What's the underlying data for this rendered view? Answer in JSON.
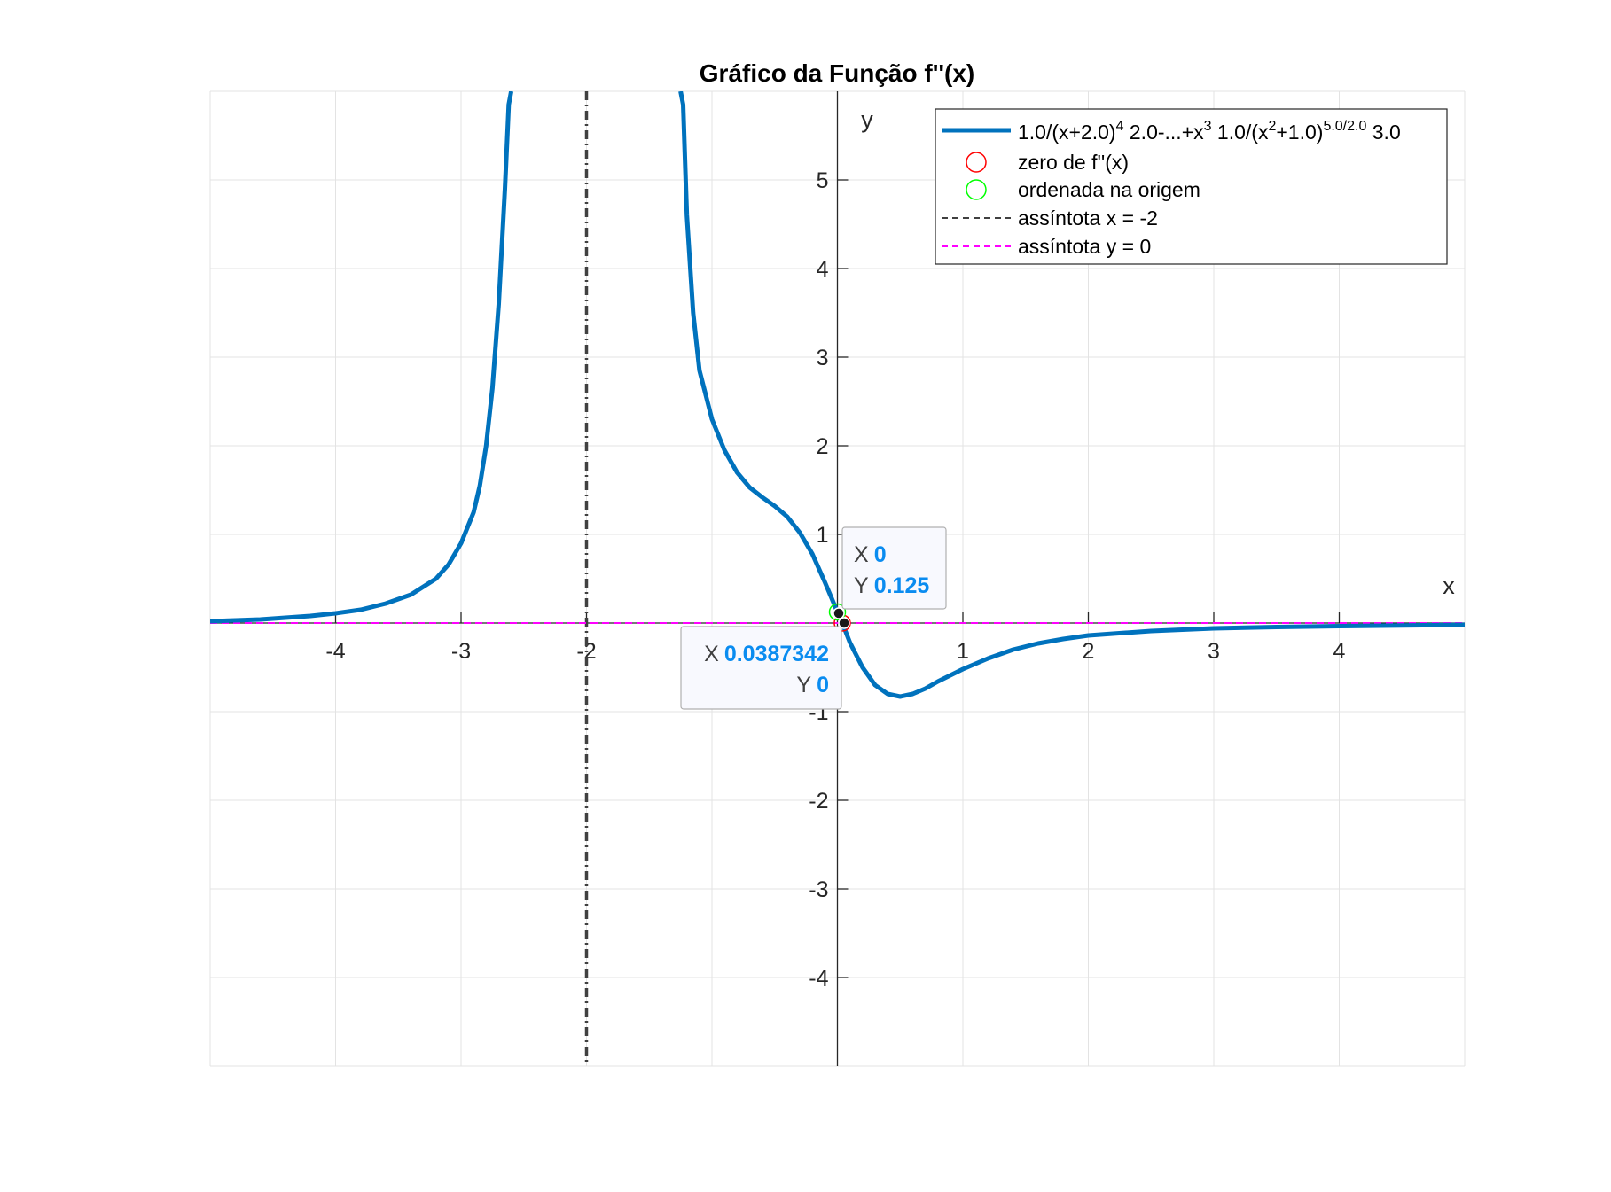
{
  "chart_data": {
    "type": "line",
    "title": "Gráfico da Função f''(x)",
    "xlabel": "x",
    "ylabel": "y",
    "xlim": [
      -5,
      5
    ],
    "ylim": [
      -5,
      6
    ],
    "xticks": [
      -4,
      -3,
      -2,
      1,
      2,
      3,
      4
    ],
    "xtick_labels": [
      "-4",
      "-3",
      "-2",
      "1",
      "2",
      "3",
      "4"
    ],
    "yticks": [
      5,
      4,
      3,
      2,
      1,
      -1,
      -2,
      -3,
      -4
    ],
    "ytick_labels": [
      "5",
      "4",
      "3",
      "2",
      "1",
      "-1",
      "-2",
      "-3",
      "-4"
    ],
    "grid": true,
    "legend_position": "top-right",
    "series": [
      {
        "name": "1.0/(x+2.0)4 2.0-...+x3 1.0/(x2+1.0)5.0/2.0 3.0",
        "color": "#0072BD",
        "style": "solid",
        "points": [
          [
            -5.0,
            0.02
          ],
          [
            -4.8,
            0.03
          ],
          [
            -4.6,
            0.04
          ],
          [
            -4.4,
            0.06
          ],
          [
            -4.2,
            0.08
          ],
          [
            -4.0,
            0.11
          ],
          [
            -3.8,
            0.15
          ],
          [
            -3.6,
            0.22
          ],
          [
            -3.4,
            0.32
          ],
          [
            -3.2,
            0.5
          ],
          [
            -3.1,
            0.66
          ],
          [
            -3.0,
            0.9
          ],
          [
            -2.9,
            1.25
          ],
          [
            -2.85,
            1.55
          ],
          [
            -2.8,
            2.0
          ],
          [
            -2.75,
            2.65
          ],
          [
            -2.7,
            3.6
          ],
          [
            -2.65,
            4.9
          ],
          [
            -2.62,
            5.85
          ],
          [
            -2.6,
            6.0
          ],
          [
            -1.25,
            6.0
          ],
          [
            -1.23,
            5.85
          ],
          [
            -1.2,
            4.6
          ],
          [
            -1.15,
            3.5
          ],
          [
            -1.1,
            2.85
          ],
          [
            -1.0,
            2.3
          ],
          [
            -0.9,
            1.95
          ],
          [
            -0.8,
            1.7
          ],
          [
            -0.7,
            1.53
          ],
          [
            -0.6,
            1.42
          ],
          [
            -0.5,
            1.32
          ],
          [
            -0.4,
            1.2
          ],
          [
            -0.3,
            1.02
          ],
          [
            -0.2,
            0.78
          ],
          [
            -0.1,
            0.46
          ],
          [
            0.0,
            0.125
          ],
          [
            0.0387342,
            0.0
          ],
          [
            0.1,
            -0.22
          ],
          [
            0.2,
            -0.5
          ],
          [
            0.3,
            -0.7
          ],
          [
            0.4,
            -0.8
          ],
          [
            0.5,
            -0.83
          ],
          [
            0.6,
            -0.8
          ],
          [
            0.7,
            -0.74
          ],
          [
            0.8,
            -0.66
          ],
          [
            1.0,
            -0.52
          ],
          [
            1.2,
            -0.4
          ],
          [
            1.4,
            -0.3
          ],
          [
            1.6,
            -0.23
          ],
          [
            1.8,
            -0.18
          ],
          [
            2.0,
            -0.14
          ],
          [
            2.5,
            -0.09
          ],
          [
            3.0,
            -0.06
          ],
          [
            3.5,
            -0.045
          ],
          [
            4.0,
            -0.035
          ],
          [
            4.5,
            -0.027
          ],
          [
            5.0,
            -0.02
          ]
        ]
      },
      {
        "name": "zero de f''(x)",
        "color": "#FF0000",
        "marker": "circle",
        "points": [
          [
            0.0387342,
            0.0
          ]
        ]
      },
      {
        "name": "ordenada na origem",
        "color": "#00FF00",
        "marker": "circle",
        "points": [
          [
            0.0,
            0.125
          ]
        ]
      },
      {
        "name": "assíntota x = -2",
        "color": "#404040",
        "style": "dashdot",
        "x": -2
      },
      {
        "name": "assíntota y = 0",
        "color": "#FF00FF",
        "style": "dashed",
        "y": 0
      }
    ],
    "legend": {
      "entries": [
        {
          "base": "1.0/(x+2.0)",
          "s1": "4",
          "mid1": " 2.0-...+x",
          "s2": "3",
          "mid2": " 1.0/(x",
          "s3": "2",
          "mid3": "+1.0)",
          "s4": "5.0/2.0",
          "tail": " 3.0"
        },
        {
          "text": "zero de f''(x)"
        },
        {
          "text": "ordenada na origem"
        },
        {
          "text": "assíntota x = -2"
        },
        {
          "text": "assíntota y = 0"
        }
      ]
    },
    "datatips": [
      {
        "x": 0,
        "y": 0.125,
        "x_label": "X",
        "y_label": "Y",
        "x_text": "0",
        "y_text": "0.125"
      },
      {
        "x": 0.0387342,
        "y": 0,
        "x_label": "X",
        "y_label": "Y",
        "x_text": "0.0387342",
        "y_text": "0"
      }
    ],
    "datatip_value_color": "#0A8CF0"
  }
}
